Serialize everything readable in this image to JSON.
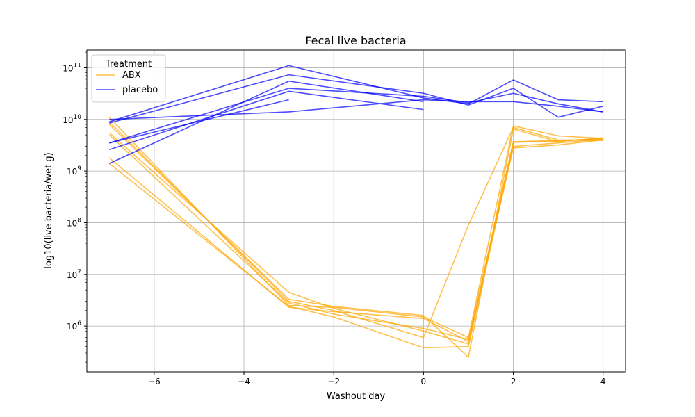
{
  "chart_data": {
    "type": "line",
    "title": "Fecal live bacteria",
    "xlabel": "Washout day",
    "ylabel": "log10(live bacteria/wet g)",
    "xlim": [
      -7.5,
      4.5
    ],
    "ylim": [
      130000,
      220000000000
    ],
    "yscale": "log",
    "grid": true,
    "x_ticks": [
      -6,
      -4,
      -2,
      0,
      2,
      4
    ],
    "x_tick_labels": [
      "−6",
      "−4",
      "−2",
      "0",
      "2",
      "4"
    ],
    "y_ticks": [
      1000000,
      10000000,
      100000000,
      1000000000,
      10000000000,
      100000000000
    ],
    "y_tick_labels": [
      {
        "base": "10",
        "exp": "6"
      },
      {
        "base": "10",
        "exp": "7"
      },
      {
        "base": "10",
        "exp": "8"
      },
      {
        "base": "10",
        "exp": "9"
      },
      {
        "base": "10",
        "exp": "10"
      },
      {
        "base": "10",
        "exp": "11"
      }
    ],
    "legend": {
      "title": "Treatment",
      "position": "top-left"
    },
    "groups": [
      {
        "name": "ABX",
        "color": "#ffa500",
        "series": [
          {
            "x": [
              -7,
              -3,
              -2,
              0,
              1,
              2,
              3,
              4
            ],
            "y": [
              11000000000,
              2500000,
              2300000,
              1500000,
              600000,
              7500000000,
              4800000000,
              4300000000
            ]
          },
          {
            "x": [
              -7,
              -3,
              -2,
              0,
              1,
              2,
              3,
              4
            ],
            "y": [
              8000000000,
              3300000,
              2400000,
              1600000,
              250000,
              6500000000,
              3700000000,
              4400000000
            ]
          },
          {
            "x": [
              -7,
              -3,
              -2,
              0,
              1,
              2,
              3,
              4
            ],
            "y": [
              5500000000,
              4500000,
              2200000,
              800000,
              450000,
              3700000000,
              3900000000,
              4200000000
            ]
          },
          {
            "x": [
              -7,
              -3,
              -2,
              0,
              1,
              2,
              3,
              4
            ],
            "y": [
              1800000000,
              2300000,
              1900000,
              1400000,
              500000,
              2800000000,
              3200000000,
              4000000000
            ]
          },
          {
            "x": [
              -7,
              -3,
              -2,
              0,
              1,
              2,
              3,
              4
            ],
            "y": [
              1400000000,
              2400000,
              1500000,
              380000,
              400000,
              3000000000,
              3500000000,
              4100000000
            ]
          },
          {
            "x": [
              -7,
              -3,
              -2,
              0,
              1,
              2,
              3,
              4
            ],
            "y": [
              9000000000,
              3000000,
              2000000,
              600000,
              90000000,
              7000000000,
              4000000000,
              3900000000
            ]
          },
          {
            "x": [
              -7,
              -3,
              -2,
              0,
              1,
              2,
              3,
              4
            ],
            "y": [
              5000000000,
              2800000,
              1700000,
              900000,
              550000,
              3600000000,
              3800000000,
              4300000000
            ]
          }
        ]
      },
      {
        "name": "placebo",
        "color": "#0000ff",
        "series": [
          {
            "x": [
              -7,
              -3,
              0,
              1,
              2,
              3,
              4
            ],
            "y": [
              9000000000,
              110000000000,
              26000000000,
              20000000000,
              58000000000,
              24000000000,
              22000000000
            ]
          },
          {
            "x": [
              -7,
              -3,
              0,
              1,
              2,
              3,
              4
            ],
            "y": [
              8500000000,
              73000000000,
              32000000000,
              19000000000,
              40000000000,
              11000000000,
              18000000000
            ]
          },
          {
            "x": [
              -7,
              -3,
              0,
              1,
              2,
              3,
              4
            ],
            "y": [
              10000000000,
              14000000000,
              24000000000,
              22000000000,
              22000000000,
              18000000000,
              14000000000
            ]
          },
          {
            "x": [
              -7,
              -3,
              0,
              1,
              2,
              3,
              4
            ],
            "y": [
              3500000000,
              40000000000,
              28000000000,
              21000000000,
              32000000000,
              20000000000,
              14000000000
            ]
          },
          {
            "x": [
              -7,
              -3,
              0
            ],
            "y": [
              2600000000,
              35000000000,
              15500000000
            ]
          },
          {
            "x": [
              -7,
              -3,
              0
            ],
            "y": [
              1400000000,
              55000000000,
              22000000000
            ]
          },
          {
            "x": [
              -7,
              -3
            ],
            "y": [
              3500000000,
              24000000000
            ]
          }
        ]
      }
    ]
  }
}
